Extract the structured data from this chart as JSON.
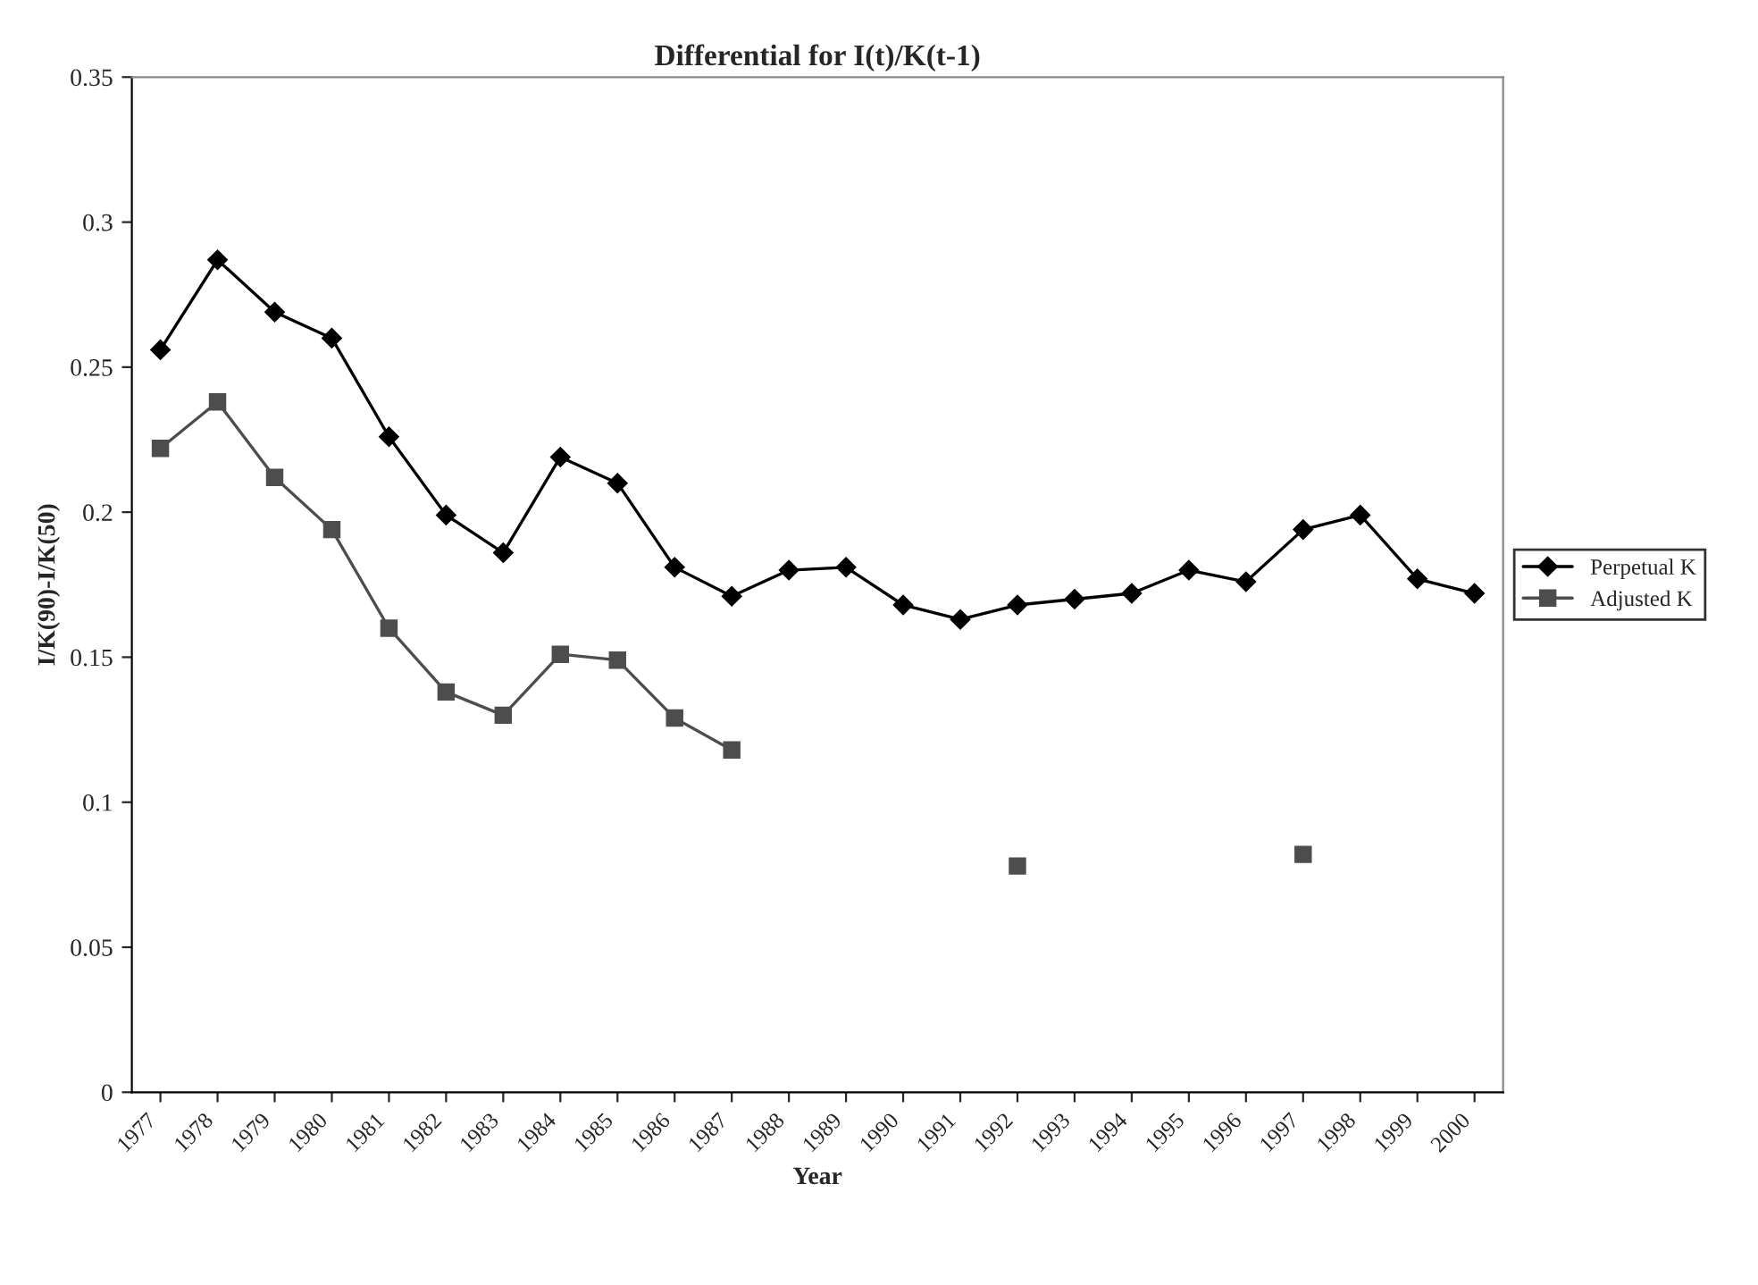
{
  "chart_data": {
    "type": "line",
    "title": "Differential for I(t)/K(t-1)",
    "xlabel": "Year",
    "ylabel": "I/K(90)-I/K(50)",
    "categories": [
      "1977",
      "1978",
      "1979",
      "1980",
      "1981",
      "1982",
      "1983",
      "1984",
      "1985",
      "1986",
      "1987",
      "1988",
      "1989",
      "1990",
      "1991",
      "1992",
      "1993",
      "1994",
      "1995",
      "1996",
      "1997",
      "1998",
      "1999",
      "2000"
    ],
    "series": [
      {
        "name": "Perpetual K",
        "color": "#000000",
        "marker": "diamond",
        "values": [
          0.256,
          0.287,
          0.269,
          0.26,
          0.226,
          0.199,
          0.186,
          0.219,
          0.21,
          0.181,
          0.171,
          0.18,
          0.181,
          0.168,
          0.163,
          0.168,
          0.17,
          0.172,
          0.18,
          0.176,
          0.194,
          0.199,
          0.177,
          0.172
        ]
      },
      {
        "name": "Adjusted K",
        "color": "#4d4d4d",
        "marker": "square",
        "values": [
          0.222,
          0.238,
          0.212,
          0.194,
          0.16,
          0.138,
          0.13,
          0.151,
          0.149,
          0.129,
          0.118,
          null,
          null,
          null,
          null,
          0.078,
          null,
          null,
          null,
          null,
          0.082,
          null,
          null,
          null
        ]
      }
    ],
    "ylim": [
      0,
      0.35
    ],
    "yticks": [
      0,
      0.05,
      0.1,
      0.15,
      0.2,
      0.25,
      0.3,
      0.35
    ],
    "grid": false,
    "legend": "right",
    "line_style": "solid"
  }
}
